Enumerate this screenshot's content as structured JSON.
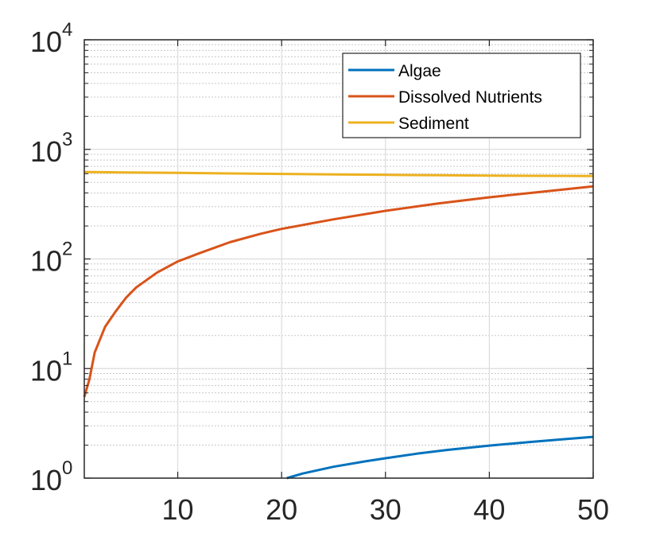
{
  "chart_data": {
    "type": "line",
    "title": "",
    "xlabel": "",
    "ylabel": "",
    "xlim": [
      1,
      50
    ],
    "ylim": [
      1,
      10000
    ],
    "yscale": "log",
    "grid": true,
    "minor_grid": true,
    "legend_position": "top-right",
    "x_ticks": [
      10,
      20,
      30,
      40,
      50
    ],
    "y_ticks": [
      {
        "value": 1,
        "base": "10",
        "exp": "0"
      },
      {
        "value": 10,
        "base": "10",
        "exp": "1"
      },
      {
        "value": 100,
        "base": "10",
        "exp": "2"
      },
      {
        "value": 1000,
        "base": "10",
        "exp": "3"
      },
      {
        "value": 10000,
        "base": "10",
        "exp": "4"
      }
    ],
    "series": [
      {
        "name": "Algae",
        "color": "#0072BD",
        "x": [
          20.5,
          22,
          25,
          28,
          30,
          33,
          36,
          40,
          44,
          47,
          50
        ],
        "y": [
          1.0,
          1.1,
          1.27,
          1.42,
          1.52,
          1.67,
          1.81,
          1.98,
          2.14,
          2.26,
          2.38
        ]
      },
      {
        "name": "Dissolved Nutrients",
        "color": "#D95319",
        "x": [
          1,
          1.5,
          2,
          3,
          4,
          5,
          6,
          8,
          10,
          12,
          15,
          18,
          20,
          25,
          30,
          35,
          40,
          45,
          50
        ],
        "y": [
          5.5,
          8,
          14,
          24,
          33,
          44,
          55,
          75,
          95,
          112,
          142,
          170,
          188,
          230,
          275,
          320,
          365,
          410,
          460
        ]
      },
      {
        "name": "Sediment",
        "color": "#EDB120",
        "x": [
          1,
          5,
          10,
          15,
          20,
          25,
          30,
          35,
          40,
          45,
          50
        ],
        "y": [
          622,
          616,
          610,
          603,
          597,
          591,
          585,
          580,
          576,
          574,
          572
        ]
      }
    ]
  }
}
